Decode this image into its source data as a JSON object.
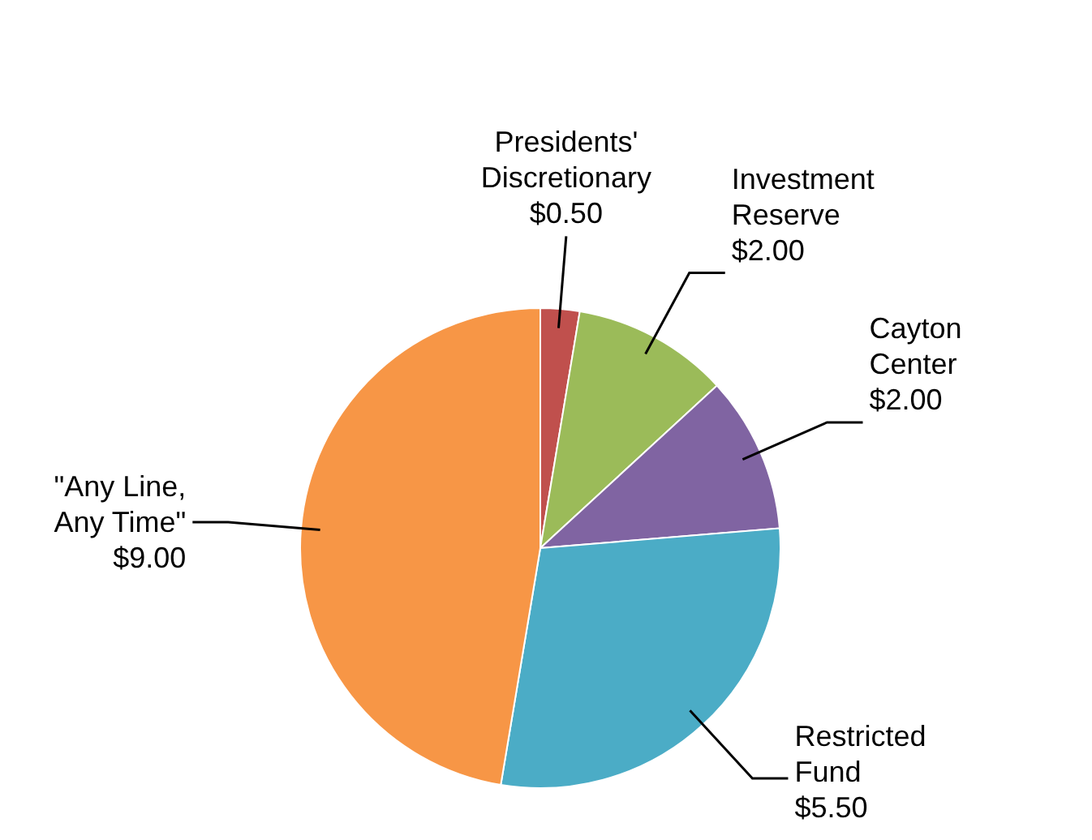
{
  "chart_data": {
    "type": "pie",
    "categories": [
      "Presidents' Discretionary",
      "Investment Reserve",
      "Cayton Center",
      "Restricted Fund",
      "\"Any Line, Any Time\""
    ],
    "values": [
      0.5,
      2,
      2,
      5.5,
      9
    ],
    "value_labels": [
      "$0.50",
      "$2.00",
      "$2.00",
      "$5.50",
      "$9.00"
    ],
    "colors": [
      "#c0504d",
      "#9bbb59",
      "#8064a2",
      "#4bacc6",
      "#f79646"
    ]
  }
}
